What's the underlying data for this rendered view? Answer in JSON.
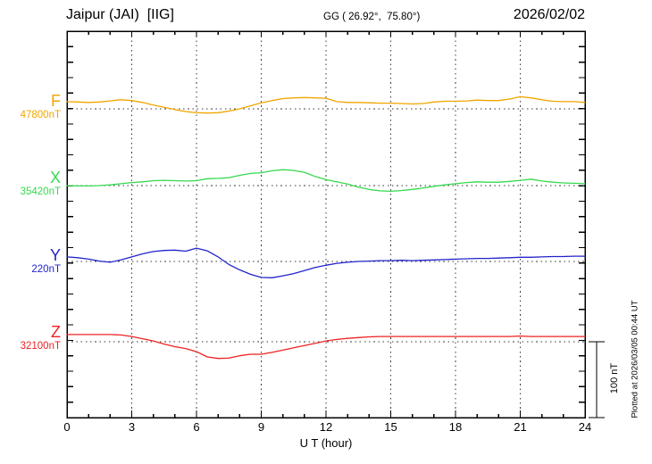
{
  "chart_data": {
    "type": "line",
    "title": "Jaipur (JAI)  [IIG]",
    "subtitle_coordinates": "GG ( 26.92°,  75.80°)",
    "date": "2026/02/02",
    "xlabel": "U T (hour)",
    "x_ticks": [
      "0",
      "3",
      "6",
      "9",
      "12",
      "15",
      "18",
      "21",
      "24"
    ],
    "x_range_hours": [
      0,
      24
    ],
    "sample_step_hours": 0.5,
    "grid_vertical_every_hours": 3,
    "baseline_dotted_per_trace": true,
    "scale_bar": {
      "label": "100 nT",
      "span_nT": 100
    },
    "plotted_at": "Plotted at 2026/03/05 00:44 UT",
    "series": [
      {
        "name": "F",
        "baseline_label": "47800nT",
        "color": "#f0a500",
        "offsets_nT": [
          9.5,
          9,
          8.5,
          9,
          10.5,
          12,
          11,
          8.5,
          5,
          2,
          -1,
          -3.5,
          -5,
          -5.5,
          -5,
          -3,
          0,
          4,
          8,
          11,
          13.5,
          14.5,
          15,
          14.5,
          14,
          9.5,
          8.5,
          8.5,
          8,
          7.5,
          7.5,
          7,
          6.5,
          7,
          9,
          10,
          10,
          10.5,
          11.5,
          11,
          11,
          13,
          16,
          14.5,
          12,
          10,
          9.5,
          9.5,
          8.5
        ]
      },
      {
        "name": "X",
        "baseline_label": "35420nT",
        "color": "#35d94f",
        "offsets_nT": [
          0,
          -0.5,
          -0.5,
          0,
          1,
          2.5,
          4,
          5,
          6.5,
          7,
          6.5,
          6,
          6.5,
          9,
          9.5,
          10.5,
          13.5,
          16,
          17,
          19.5,
          21,
          20,
          17.5,
          12,
          8,
          5,
          2,
          -2,
          -5,
          -7,
          -7.5,
          -6.5,
          -5,
          -3,
          -1,
          1,
          2.5,
          4,
          5,
          4.5,
          4.5,
          5.5,
          7,
          8.5,
          6,
          4.5,
          3.5,
          3,
          2.5
        ]
      },
      {
        "name": "Y",
        "baseline_label": "220nT",
        "color": "#2323cc",
        "offsets_nT": [
          6,
          5,
          3,
          0.5,
          -1,
          2,
          6,
          10,
          13,
          14.5,
          15,
          13.5,
          17.5,
          14,
          6,
          -4,
          -11,
          -17,
          -21,
          -21.5,
          -19,
          -16,
          -12,
          -8,
          -5,
          -2.5,
          -1,
          0,
          0.5,
          1,
          1,
          1.5,
          1,
          1.5,
          2,
          2.5,
          3,
          3.5,
          4,
          4,
          4.5,
          5,
          5.5,
          5.5,
          6,
          6.5,
          6.5,
          7,
          7
        ]
      },
      {
        "name": "Z",
        "baseline_label": "32100nT",
        "color": "#ee2222",
        "offsets_nT": [
          9.5,
          9.5,
          9.5,
          9.5,
          9.5,
          9,
          7,
          4,
          1,
          -3,
          -6.5,
          -9,
          -13,
          -20,
          -22,
          -21.5,
          -18.5,
          -16.5,
          -16.5,
          -14,
          -11,
          -8,
          -5,
          -2,
          1,
          3,
          4.5,
          5.5,
          6.5,
          7,
          7,
          7,
          7,
          7,
          7,
          7,
          7,
          7,
          7,
          7,
          7,
          7,
          7.5,
          7,
          7,
          7,
          7,
          7,
          7
        ]
      }
    ]
  }
}
